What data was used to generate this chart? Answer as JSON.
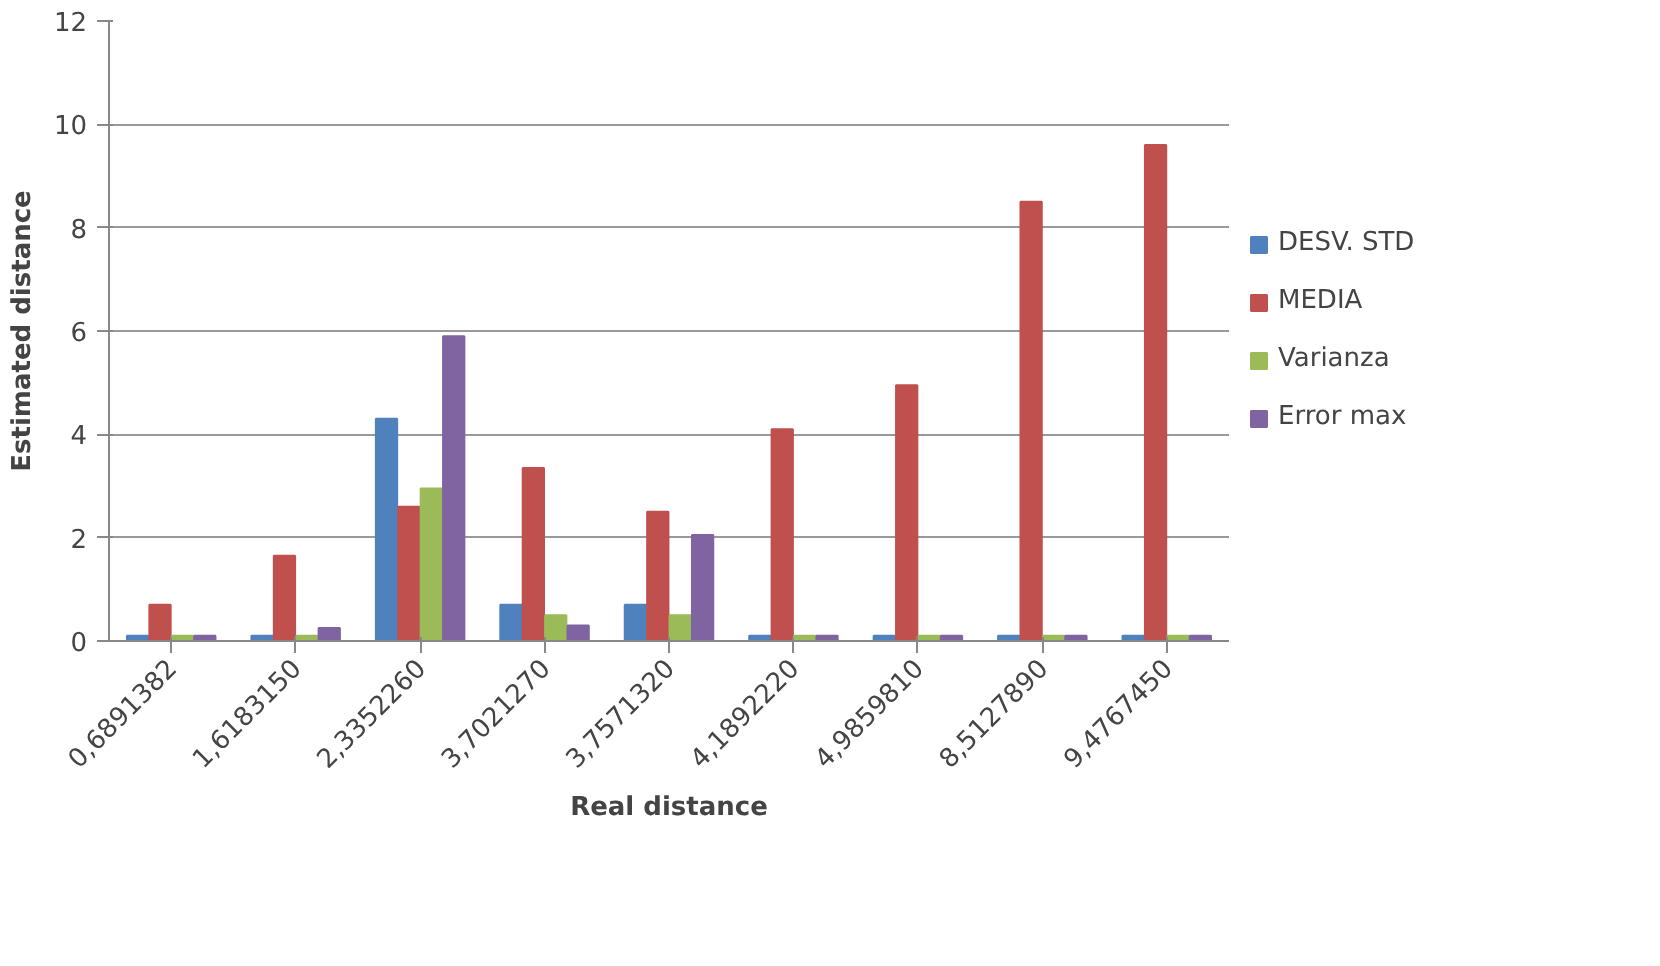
{
  "chart_data": {
    "type": "bar",
    "xlabel": "Real distance",
    "ylabel": "Estimated distance",
    "categories": [
      "0,6891382",
      "1,6183150",
      "2,3352260",
      "3,7021270",
      "3,7571320",
      "4,1892220",
      "4,9859810",
      "8,5127890",
      "9,4767450"
    ],
    "series": [
      {
        "name": "DESV. STD",
        "color": "#4f81bd",
        "values": [
          0.1,
          0.1,
          4.3,
          0.7,
          0.7,
          0.1,
          0.1,
          0.1,
          0.1
        ]
      },
      {
        "name": "MEDIA",
        "color": "#c0504d",
        "values": [
          0.7,
          1.65,
          2.6,
          3.35,
          2.5,
          4.1,
          4.95,
          8.5,
          9.6
        ]
      },
      {
        "name": "Varianza",
        "color": "#9bbb59",
        "values": [
          0.1,
          0.1,
          2.95,
          0.5,
          0.5,
          0.1,
          0.1,
          0.1,
          0.1
        ]
      },
      {
        "name": "Error max",
        "color": "#8064a2",
        "values": [
          0.1,
          0.25,
          5.9,
          0.3,
          2.05,
          0.1,
          0.1,
          0.1,
          0.1
        ]
      }
    ],
    "ylim": [
      0,
      12
    ],
    "yticks": [
      0,
      2,
      4,
      6,
      8,
      10,
      12
    ],
    "grid": "y",
    "legend": "right"
  }
}
